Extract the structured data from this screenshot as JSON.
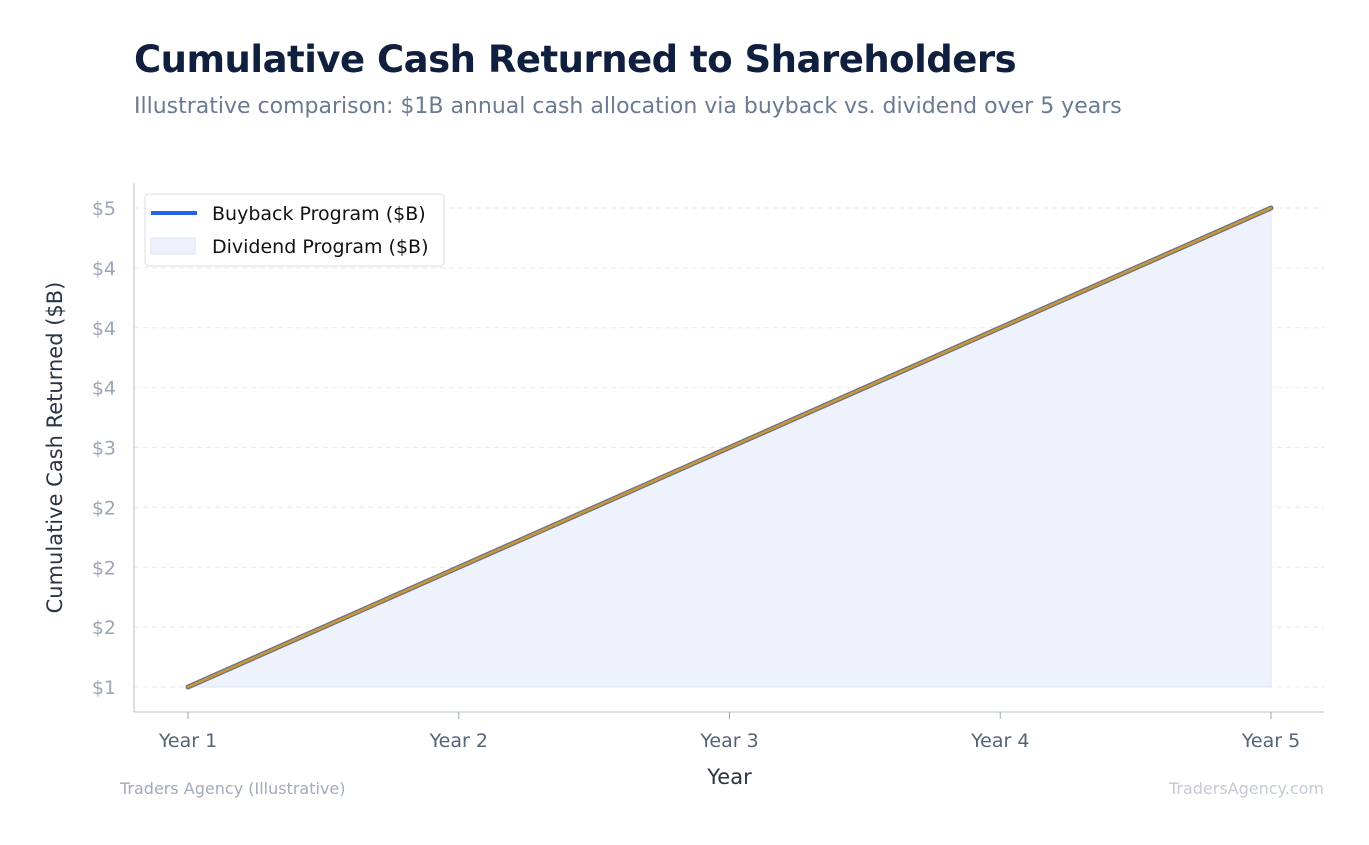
{
  "header": {
    "title": "Cumulative Cash Returned to Shareholders",
    "subtitle": "Illustrative comparison: $1B annual cash allocation via buyback vs. dividend over 5 years"
  },
  "footer": {
    "left": "Traders Agency (Illustrative)",
    "right": "TradersAgency.com"
  },
  "chart_data": {
    "type": "line",
    "categories": [
      "Year 1",
      "Year 2",
      "Year 3",
      "Year 4",
      "Year 5"
    ],
    "series": [
      {
        "name": "Buyback Program ($B)",
        "values": [
          1,
          2,
          3,
          4,
          5
        ],
        "style": "line",
        "color": "#2563eb"
      },
      {
        "name": "Dividend Program ($B)",
        "values": [
          1,
          2,
          3,
          4,
          5
        ],
        "style": "area",
        "color": "#eef2fc",
        "line_color": "#c9973a"
      }
    ],
    "xlabel": "Year",
    "ylabel": "Cumulative Cash Returned ($B)",
    "ylim": [
      1,
      5
    ],
    "yticks": [
      1,
      1.5,
      2,
      2.5,
      3,
      3.5,
      4,
      4.5,
      5
    ],
    "ytick_labels": [
      "$1",
      "$2",
      "$2",
      "$2",
      "$3",
      "$4",
      "$4",
      "$4",
      "$5"
    ],
    "grid": true,
    "legend_position": "top-left"
  }
}
